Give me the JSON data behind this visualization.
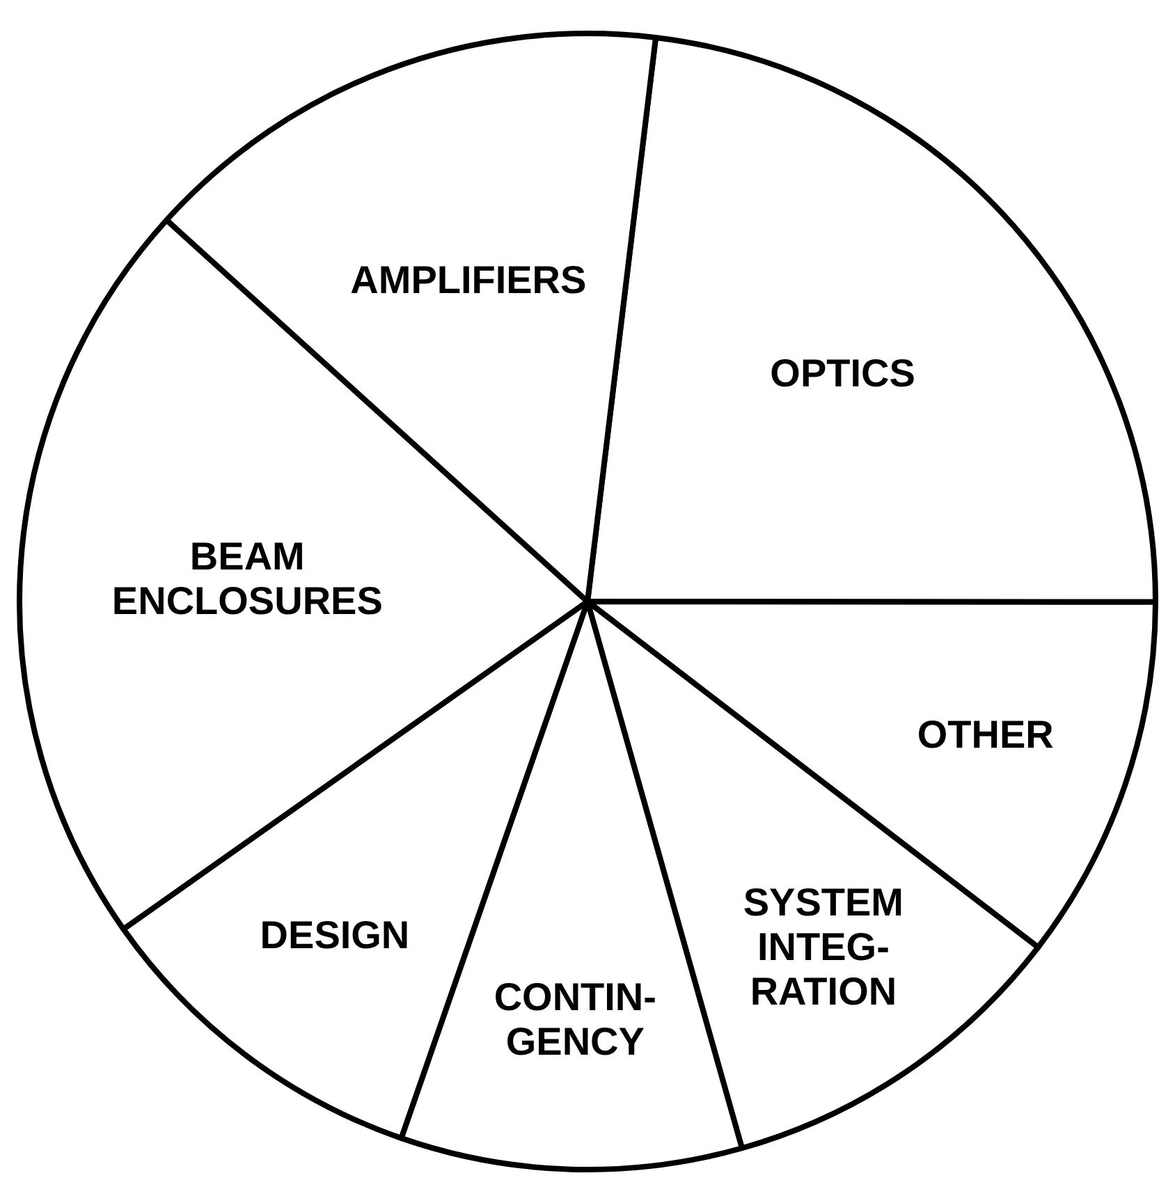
{
  "chart_data": {
    "type": "pie",
    "categories": [
      "OPTICS",
      "OTHER",
      "SYSTEM INTEG-RATION",
      "CONTIN-GENCY",
      "DESIGN",
      "BEAM ENCLOSURES",
      "AMPLIFIERS"
    ],
    "values": [
      23.1,
      10.4,
      10.2,
      9.7,
      9.9,
      21.5,
      15.2
    ],
    "colors": [
      "#ffffff",
      "#ffffff",
      "#ffffff",
      "#ffffff",
      "#ffffff",
      "#ffffff",
      "#ffffff"
    ],
    "legend": false
  }
}
